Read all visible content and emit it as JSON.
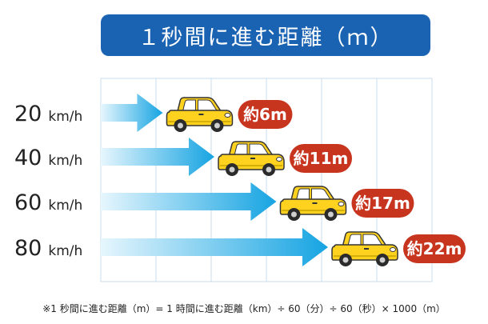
{
  "chart_data": {
    "type": "bar",
    "title": "１秒間に進む距離（ｍ）",
    "categories": [
      "20",
      "40",
      "60",
      "80"
    ],
    "unit": "km/h",
    "values": [
      6,
      11,
      17,
      22
    ],
    "value_labels": [
      "約6m",
      "約11m",
      "約17m",
      "約22m"
    ],
    "xlim": [
      0,
      22
    ],
    "grid": true,
    "legend": "none"
  },
  "footnote": "※1 秒間に進む距離（m）= 1 時間に進む距離（km）÷ 60（分）÷ 60（秒）× 1000（m）",
  "colors": {
    "title_bg": "#1a63b3",
    "arrow_start": "#e6f6fd",
    "arrow_end": "#16a4e2",
    "label_bg": "#c8351f",
    "car_body": "#ffd21f",
    "grid": "#c9ddee"
  },
  "icons": [
    "car-icon"
  ]
}
